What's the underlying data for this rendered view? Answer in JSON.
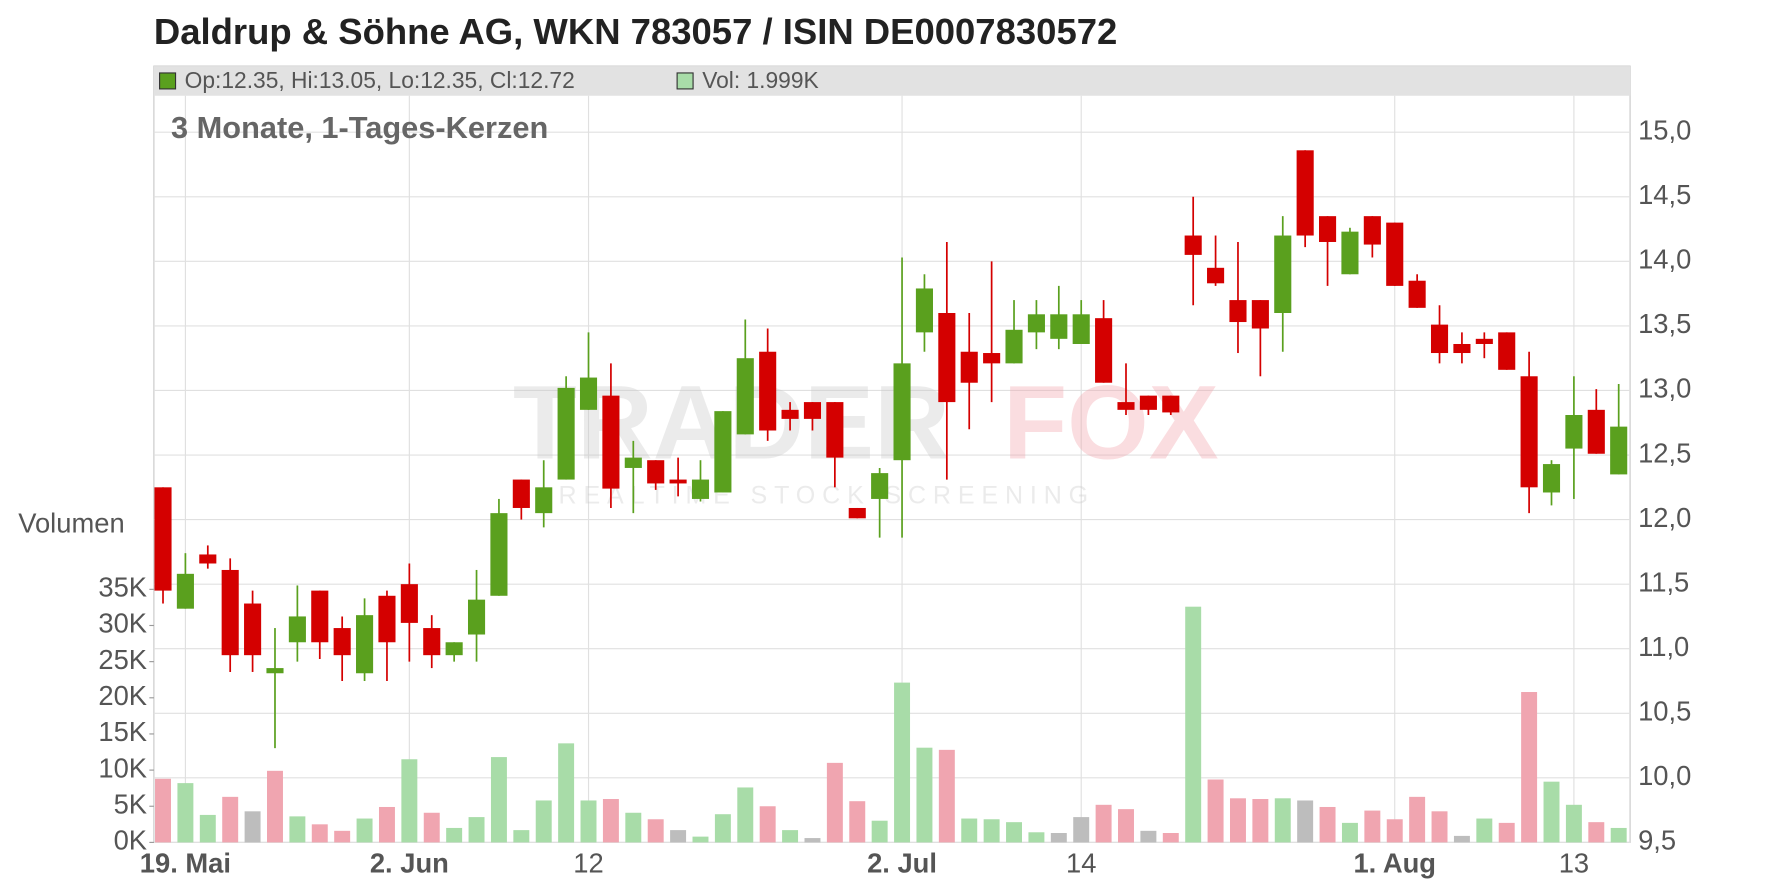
{
  "chart_data": {
    "type": "candlestick",
    "title": "Daldrup & Söhne AG, WKN 783057 / ISIN DE0007830572",
    "subtitle": "3 Monate, 1-Tages-Kerzen",
    "legend": {
      "price": "Op:12.35, Hi:13.05, Lo:12.35, Cl:12.72",
      "volume": "Vol: 1.999K"
    },
    "volume_axis_label": "Volumen",
    "watermark": {
      "brand_1": "TRADER",
      "brand_2": "FOX",
      "tagline": "REALTIME STOCK SCREENING"
    },
    "up_color": "#5aa01e",
    "down_color": "#d40000",
    "grid": true,
    "categories": [
      null,
      "19. Mai",
      null,
      null,
      null,
      null,
      null,
      null,
      null,
      null,
      null,
      "2. Jun",
      null,
      null,
      null,
      null,
      null,
      null,
      null,
      "12",
      null,
      null,
      null,
      null,
      null,
      null,
      null,
      null,
      null,
      null,
      null,
      null,
      null,
      "2. Jul",
      null,
      null,
      null,
      null,
      null,
      null,
      null,
      "14",
      null,
      null,
      null,
      null,
      null,
      null,
      null,
      null,
      null,
      null,
      null,
      null,
      null,
      "1. Aug",
      null,
      null,
      null,
      null,
      null,
      null,
      null,
      "13",
      null,
      null
    ],
    "open": [
      12.25,
      11.31,
      11.73,
      11.61,
      11.35,
      10.81,
      11.05,
      11.45,
      11.16,
      10.81,
      11.41,
      11.5,
      11.16,
      10.95,
      11.11,
      11.41,
      12.31,
      12.05,
      12.31,
      12.85,
      12.96,
      12.4,
      12.46,
      12.31,
      12.16,
      12.21,
      12.66,
      13.3,
      12.85,
      12.91,
      12.91,
      12.09,
      12.16,
      12.46,
      13.45,
      13.6,
      13.3,
      13.29,
      13.21,
      13.45,
      13.4,
      13.36,
      13.56,
      12.91,
      12.96,
      12.96,
      14.2,
      13.95,
      13.7,
      13.7,
      13.6,
      14.86,
      14.35,
      13.9,
      14.35,
      14.3,
      13.85,
      13.51,
      13.36,
      13.4,
      13.45,
      13.11,
      12.21,
      12.55,
      12.85,
      12.35
    ],
    "high": [
      12.25,
      11.74,
      11.8,
      11.7,
      11.45,
      11.16,
      11.49,
      11.45,
      11.25,
      11.39,
      11.45,
      11.66,
      11.26,
      11.05,
      11.61,
      12.16,
      12.31,
      12.46,
      13.11,
      13.45,
      13.21,
      12.61,
      12.46,
      12.48,
      12.46,
      12.84,
      13.55,
      13.48,
      12.91,
      12.91,
      12.91,
      12.09,
      12.4,
      14.03,
      13.9,
      14.15,
      13.6,
      14.0,
      13.7,
      13.7,
      13.81,
      13.7,
      13.7,
      13.21,
      12.96,
      12.96,
      14.5,
      14.2,
      14.15,
      13.7,
      14.35,
      14.86,
      14.35,
      14.26,
      14.35,
      14.3,
      13.9,
      13.66,
      13.45,
      13.45,
      13.45,
      13.3,
      12.46,
      13.11,
      13.01,
      13.05
    ],
    "low": [
      11.35,
      11.31,
      11.62,
      10.82,
      10.82,
      10.23,
      10.9,
      10.92,
      10.75,
      10.75,
      10.75,
      10.9,
      10.85,
      10.9,
      10.9,
      11.41,
      12.0,
      11.94,
      12.31,
      12.85,
      12.09,
      12.05,
      12.23,
      12.18,
      12.14,
      12.21,
      12.66,
      12.61,
      12.69,
      12.69,
      12.25,
      12.01,
      11.86,
      11.86,
      13.3,
      12.31,
      12.7,
      12.91,
      13.21,
      13.32,
      13.32,
      13.36,
      13.06,
      12.81,
      12.81,
      12.81,
      13.66,
      13.81,
      13.29,
      13.11,
      13.3,
      14.11,
      13.81,
      13.9,
      14.03,
      13.81,
      13.64,
      13.21,
      13.21,
      13.25,
      13.16,
      12.05,
      12.11,
      12.16,
      12.51,
      12.35
    ],
    "close": [
      11.45,
      11.58,
      11.66,
      10.95,
      10.95,
      10.85,
      11.25,
      11.05,
      10.95,
      11.26,
      11.05,
      11.2,
      10.95,
      11.05,
      11.38,
      12.05,
      12.09,
      12.25,
      13.02,
      13.1,
      12.24,
      12.48,
      12.28,
      12.28,
      12.31,
      12.84,
      13.25,
      12.69,
      12.78,
      12.78,
      12.48,
      12.01,
      12.36,
      13.21,
      13.79,
      12.91,
      13.06,
      13.21,
      13.47,
      13.59,
      13.59,
      13.59,
      13.06,
      12.85,
      12.85,
      12.83,
      14.05,
      13.83,
      13.53,
      13.48,
      14.2,
      14.2,
      14.15,
      14.23,
      14.13,
      13.81,
      13.64,
      13.29,
      13.29,
      13.36,
      13.16,
      12.25,
      12.43,
      12.81,
      12.51,
      12.72
    ],
    "volume": [
      8800,
      8200,
      3800,
      6300,
      4300,
      9900,
      3600,
      2500,
      1600,
      3300,
      4900,
      11500,
      4100,
      2000,
      3500,
      11800,
      1700,
      5800,
      13700,
      5800,
      6000,
      4100,
      3200,
      1700,
      800,
      3900,
      7600,
      5000,
      1700,
      600,
      11000,
      5700,
      3000,
      22100,
      13100,
      12800,
      3300,
      3200,
      2800,
      1400,
      1300,
      3500,
      5200,
      4600,
      1600,
      1300,
      32600,
      8700,
      6100,
      6000,
      6100,
      5800,
      4900,
      2700,
      4400,
      3200,
      6300,
      4300,
      900,
      3300,
      2700,
      20800,
      8400,
      5200,
      2800,
      1999
    ],
    "volume_colors": [
      "#f0a5b0",
      "#a8dca8",
      "#a8dca8",
      "#f0a5b0",
      "#bdbdbd",
      "#f0a5b0",
      "#a8dca8",
      "#f0a5b0",
      "#f0a5b0",
      "#a8dca8",
      "#f0a5b0",
      "#a8dca8",
      "#f0a5b0",
      "#a8dca8",
      "#a8dca8",
      "#a8dca8",
      "#a8dca8",
      "#a8dca8",
      "#a8dca8",
      "#a8dca8",
      "#f0a5b0",
      "#a8dca8",
      "#f0a5b0",
      "#bdbdbd",
      "#a8dca8",
      "#a8dca8",
      "#a8dca8",
      "#f0a5b0",
      "#a8dca8",
      "#bdbdbd",
      "#f0a5b0",
      "#f0a5b0",
      "#a8dca8",
      "#a8dca8",
      "#a8dca8",
      "#f0a5b0",
      "#a8dca8",
      "#a8dca8",
      "#a8dca8",
      "#a8dca8",
      "#bdbdbd",
      "#bdbdbd",
      "#f0a5b0",
      "#f0a5b0",
      "#bdbdbd",
      "#f0a5b0",
      "#a8dca8",
      "#f0a5b0",
      "#f0a5b0",
      "#f0a5b0",
      "#a8dca8",
      "#bdbdbd",
      "#f0a5b0",
      "#a8dca8",
      "#f0a5b0",
      "#f0a5b0",
      "#f0a5b0",
      "#f0a5b0",
      "#bdbdbd",
      "#a8dca8",
      "#f0a5b0",
      "#f0a5b0",
      "#a8dca8",
      "#a8dca8",
      "#f0a5b0",
      "#a8dca8"
    ],
    "ylim": [
      9.5,
      15.0
    ],
    "yticks": [
      {
        "value": 9.5,
        "label": "9,5"
      },
      {
        "value": 10.0,
        "label": "10,0"
      },
      {
        "value": 10.5,
        "label": "10,5"
      },
      {
        "value": 11.0,
        "label": "11,0"
      },
      {
        "value": 11.5,
        "label": "11,5"
      },
      {
        "value": 12.0,
        "label": "12,0"
      },
      {
        "value": 12.5,
        "label": "12,5"
      },
      {
        "value": 13.0,
        "label": "13,0"
      },
      {
        "value": 13.5,
        "label": "13,5"
      },
      {
        "value": 14.0,
        "label": "14,0"
      },
      {
        "value": 14.5,
        "label": "14,5"
      },
      {
        "value": 15.0,
        "label": "15,0"
      }
    ],
    "y2lim": [
      0,
      35000
    ],
    "y2ticks": [
      {
        "value": 0,
        "label": "0K"
      },
      {
        "value": 5000,
        "label": "5K"
      },
      {
        "value": 10000,
        "label": "10K"
      },
      {
        "value": 15000,
        "label": "15K"
      },
      {
        "value": 20000,
        "label": "20K"
      },
      {
        "value": 25000,
        "label": "25K"
      },
      {
        "value": 30000,
        "label": "30K"
      },
      {
        "value": 35000,
        "label": "35K"
      }
    ]
  }
}
